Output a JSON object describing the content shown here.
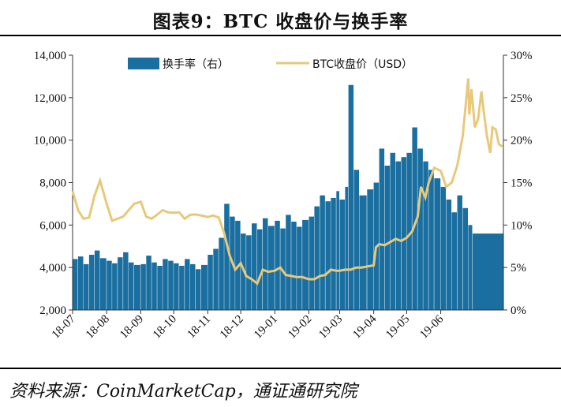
{
  "title": "图表9：BTC 收盘价与换手率",
  "source": "资料来源：CoinMarketCap，通证通研究院",
  "chart_data": {
    "type": "bar+line",
    "left_axis": {
      "min": 2000,
      "max": 14000,
      "ticks": [
        "2,000",
        "4,000",
        "6,000",
        "8,000",
        "10,000",
        "12,000",
        "14,000"
      ]
    },
    "right_axis": {
      "min": 0,
      "max": 30,
      "ticks": [
        "0%",
        "5%",
        "10%",
        "15%",
        "20%",
        "25%",
        "30%"
      ]
    },
    "x_ticks": [
      "18-07",
      "18-08",
      "18-09",
      "18-10",
      "18-11",
      "18-12",
      "19-01",
      "19-02",
      "19-03",
      "19-04",
      "19-05",
      "19-06"
    ],
    "legend": {
      "bar": "换手率（右）",
      "line": "BTC收盘价（USD）",
      "placement": "top"
    },
    "colors": {
      "bar": "#1a6fa0",
      "line": "#e8c97a"
    },
    "turnover_pct": [
      {
        "x": "18-07-01",
        "y": 6.0
      },
      {
        "x": "18-07-06",
        "y": 6.3
      },
      {
        "x": "18-07-11",
        "y": 5.4
      },
      {
        "x": "18-07-16",
        "y": 6.5
      },
      {
        "x": "18-07-21",
        "y": 7.0
      },
      {
        "x": "18-07-26",
        "y": 6.1
      },
      {
        "x": "18-08-01",
        "y": 5.8
      },
      {
        "x": "18-08-06",
        "y": 5.5
      },
      {
        "x": "18-08-11",
        "y": 6.2
      },
      {
        "x": "18-08-16",
        "y": 6.8
      },
      {
        "x": "18-08-21",
        "y": 5.6
      },
      {
        "x": "18-08-26",
        "y": 5.3
      },
      {
        "x": "18-09-01",
        "y": 5.4
      },
      {
        "x": "18-09-06",
        "y": 6.4
      },
      {
        "x": "18-09-11",
        "y": 5.6
      },
      {
        "x": "18-09-16",
        "y": 5.2
      },
      {
        "x": "18-09-21",
        "y": 6.0
      },
      {
        "x": "18-09-26",
        "y": 5.8
      },
      {
        "x": "18-10-01",
        "y": 5.5
      },
      {
        "x": "18-10-06",
        "y": 5.2
      },
      {
        "x": "18-10-11",
        "y": 6.0
      },
      {
        "x": "18-10-16",
        "y": 5.4
      },
      {
        "x": "18-10-21",
        "y": 4.8
      },
      {
        "x": "18-10-26",
        "y": 5.3
      },
      {
        "x": "18-11-01",
        "y": 6.5
      },
      {
        "x": "18-11-06",
        "y": 7.2
      },
      {
        "x": "18-11-11",
        "y": 8.5
      },
      {
        "x": "18-11-16",
        "y": 12.5
      },
      {
        "x": "18-11-21",
        "y": 11.0
      },
      {
        "x": "18-11-26",
        "y": 10.5
      },
      {
        "x": "18-12-01",
        "y": 9.0
      },
      {
        "x": "18-12-06",
        "y": 8.8
      },
      {
        "x": "18-12-11",
        "y": 10.2
      },
      {
        "x": "18-12-16",
        "y": 9.5
      },
      {
        "x": "18-12-21",
        "y": 10.8
      },
      {
        "x": "18-12-26",
        "y": 9.9
      },
      {
        "x": "19-01-01",
        "y": 10.5
      },
      {
        "x": "19-01-06",
        "y": 9.6
      },
      {
        "x": "19-01-11",
        "y": 11.2
      },
      {
        "x": "19-01-16",
        "y": 10.4
      },
      {
        "x": "19-01-21",
        "y": 9.8
      },
      {
        "x": "19-01-26",
        "y": 10.6
      },
      {
        "x": "19-02-01",
        "y": 11.0
      },
      {
        "x": "19-02-06",
        "y": 12.2
      },
      {
        "x": "19-02-11",
        "y": 13.5
      },
      {
        "x": "19-02-16",
        "y": 12.8
      },
      {
        "x": "19-02-21",
        "y": 13.2
      },
      {
        "x": "19-02-26",
        "y": 14.0
      },
      {
        "x": "19-03-01",
        "y": 13.0
      },
      {
        "x": "19-03-06",
        "y": 14.5
      },
      {
        "x": "19-03-09",
        "y": 26.5
      },
      {
        "x": "19-03-14",
        "y": 16.5
      },
      {
        "x": "19-03-19",
        "y": 13.5
      },
      {
        "x": "19-03-26",
        "y": 14.2
      },
      {
        "x": "19-04-01",
        "y": 15.0
      },
      {
        "x": "19-04-06",
        "y": 19.0
      },
      {
        "x": "19-04-11",
        "y": 17.0
      },
      {
        "x": "19-04-16",
        "y": 18.5
      },
      {
        "x": "19-04-21",
        "y": 17.5
      },
      {
        "x": "19-04-26",
        "y": 18.0
      },
      {
        "x": "19-05-01",
        "y": 18.5
      },
      {
        "x": "19-05-06",
        "y": 21.5
      },
      {
        "x": "19-05-11",
        "y": 19.0
      },
      {
        "x": "19-05-16",
        "y": 17.5
      },
      {
        "x": "19-05-21",
        "y": 16.5
      },
      {
        "x": "19-05-26",
        "y": 15.5
      },
      {
        "x": "19-06-01",
        "y": 14.5
      },
      {
        "x": "19-06-06",
        "y": 13.0
      },
      {
        "x": "19-06-11",
        "y": 11.5
      },
      {
        "x": "19-06-16",
        "y": 13.5
      },
      {
        "x": "19-06-21",
        "y": 12.0
      },
      {
        "x": "19-06-26",
        "y": 10.0
      },
      {
        "x": "19-06-30",
        "y": 9.0
      }
    ],
    "close_usd": [
      {
        "x": "18-07-01",
        "y": 7600
      },
      {
        "x": "18-07-06",
        "y": 6700
      },
      {
        "x": "18-07-11",
        "y": 6300
      },
      {
        "x": "18-07-16",
        "y": 6350
      },
      {
        "x": "18-07-21",
        "y": 7400
      },
      {
        "x": "18-07-26",
        "y": 8100
      },
      {
        "x": "18-08-01",
        "y": 7000
      },
      {
        "x": "18-08-06",
        "y": 6200
      },
      {
        "x": "18-08-11",
        "y": 6300
      },
      {
        "x": "18-08-16",
        "y": 6400
      },
      {
        "x": "18-08-21",
        "y": 6700
      },
      {
        "x": "18-08-26",
        "y": 7000
      },
      {
        "x": "18-09-01",
        "y": 7100
      },
      {
        "x": "18-09-06",
        "y": 6400
      },
      {
        "x": "18-09-11",
        "y": 6300
      },
      {
        "x": "18-09-16",
        "y": 6500
      },
      {
        "x": "18-09-21",
        "y": 6700
      },
      {
        "x": "18-09-26",
        "y": 6600
      },
      {
        "x": "18-10-01",
        "y": 6580
      },
      {
        "x": "18-10-06",
        "y": 6600
      },
      {
        "x": "18-10-11",
        "y": 6300
      },
      {
        "x": "18-10-16",
        "y": 6480
      },
      {
        "x": "18-10-21",
        "y": 6500
      },
      {
        "x": "18-10-26",
        "y": 6450
      },
      {
        "x": "18-11-01",
        "y": 6380
      },
      {
        "x": "18-11-06",
        "y": 6450
      },
      {
        "x": "18-11-11",
        "y": 6350
      },
      {
        "x": "18-11-16",
        "y": 5600
      },
      {
        "x": "18-11-21",
        "y": 4550
      },
      {
        "x": "18-11-26",
        "y": 3900
      },
      {
        "x": "18-12-01",
        "y": 4200
      },
      {
        "x": "18-12-06",
        "y": 3600
      },
      {
        "x": "18-12-11",
        "y": 3450
      },
      {
        "x": "18-12-16",
        "y": 3250
      },
      {
        "x": "18-12-21",
        "y": 3900
      },
      {
        "x": "18-12-26",
        "y": 3800
      },
      {
        "x": "19-01-01",
        "y": 3850
      },
      {
        "x": "19-01-06",
        "y": 4000
      },
      {
        "x": "19-01-11",
        "y": 3650
      },
      {
        "x": "19-01-16",
        "y": 3600
      },
      {
        "x": "19-01-21",
        "y": 3550
      },
      {
        "x": "19-01-26",
        "y": 3550
      },
      {
        "x": "19-02-01",
        "y": 3450
      },
      {
        "x": "19-02-06",
        "y": 3450
      },
      {
        "x": "19-02-11",
        "y": 3600
      },
      {
        "x": "19-02-16",
        "y": 3650
      },
      {
        "x": "19-02-21",
        "y": 3900
      },
      {
        "x": "19-02-26",
        "y": 3850
      },
      {
        "x": "19-03-01",
        "y": 3850
      },
      {
        "x": "19-03-06",
        "y": 3900
      },
      {
        "x": "19-03-11",
        "y": 3900
      },
      {
        "x": "19-03-16",
        "y": 4000
      },
      {
        "x": "19-03-21",
        "y": 4000
      },
      {
        "x": "19-03-26",
        "y": 4050
      },
      {
        "x": "19-04-01",
        "y": 4100
      },
      {
        "x": "19-04-03",
        "y": 4950
      },
      {
        "x": "19-04-06",
        "y": 5100
      },
      {
        "x": "19-04-11",
        "y": 5050
      },
      {
        "x": "19-04-16",
        "y": 5200
      },
      {
        "x": "19-04-21",
        "y": 5350
      },
      {
        "x": "19-04-26",
        "y": 5250
      },
      {
        "x": "19-05-01",
        "y": 5400
      },
      {
        "x": "19-05-06",
        "y": 5700
      },
      {
        "x": "19-05-11",
        "y": 6400
      },
      {
        "x": "19-05-14",
        "y": 7800
      },
      {
        "x": "19-05-18",
        "y": 7300
      },
      {
        "x": "19-05-21",
        "y": 8000
      },
      {
        "x": "19-05-26",
        "y": 8700
      },
      {
        "x": "19-06-01",
        "y": 8550
      },
      {
        "x": "19-06-06",
        "y": 7800
      },
      {
        "x": "19-06-11",
        "y": 8000
      },
      {
        "x": "19-06-16",
        "y": 8800
      },
      {
        "x": "19-06-21",
        "y": 10200
      },
      {
        "x": "19-06-26",
        "y": 12900
      },
      {
        "x": "19-06-27",
        "y": 11200
      },
      {
        "x": "19-06-29",
        "y": 12400
      },
      {
        "x": "19-07-02",
        "y": 10600
      },
      {
        "x": "19-07-05",
        "y": 11000
      },
      {
        "x": "19-07-08",
        "y": 12300
      },
      {
        "x": "19-07-10",
        "y": 11400
      },
      {
        "x": "19-07-13",
        "y": 10200
      },
      {
        "x": "19-07-16",
        "y": 9400
      },
      {
        "x": "19-07-18",
        "y": 10600
      },
      {
        "x": "19-07-21",
        "y": 10500
      },
      {
        "x": "19-07-24",
        "y": 9800
      },
      {
        "x": "19-07-27",
        "y": 9700
      }
    ]
  }
}
